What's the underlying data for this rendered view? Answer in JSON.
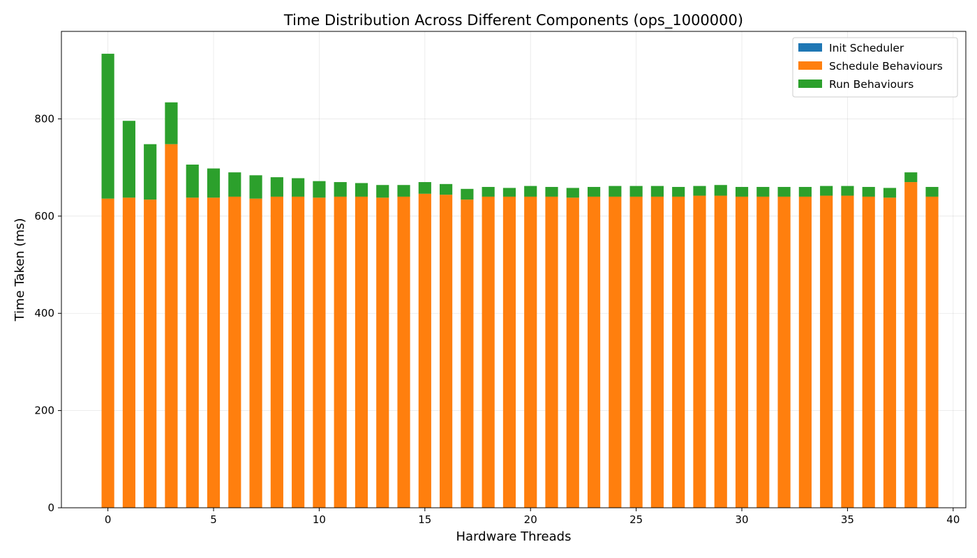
{
  "chart_data": {
    "type": "bar",
    "stacked": true,
    "title": "Time Distribution Across Different Components (ops_1000000)",
    "xlabel": "Hardware Threads",
    "ylabel": "Time Taken (ms)",
    "xlim": [
      -2.2,
      40.6
    ],
    "ylim": [
      0,
      980
    ],
    "xticks": [
      0,
      5,
      10,
      15,
      20,
      25,
      30,
      35,
      40
    ],
    "yticks": [
      0,
      200,
      400,
      600,
      800
    ],
    "grid": true,
    "legend_position": "upper-right",
    "x": [
      0,
      1,
      2,
      3,
      4,
      5,
      6,
      7,
      8,
      9,
      10,
      11,
      12,
      13,
      14,
      15,
      16,
      17,
      18,
      19,
      20,
      21,
      22,
      23,
      24,
      25,
      26,
      27,
      28,
      29,
      30,
      31,
      32,
      33,
      34,
      35,
      36,
      37,
      38,
      39
    ],
    "series": [
      {
        "name": "Init Scheduler",
        "color": "#1f77b4",
        "values": [
          0,
          0,
          0,
          0,
          0,
          0,
          0,
          0,
          0,
          0,
          0,
          0,
          0,
          0,
          0,
          0,
          0,
          0,
          0,
          0,
          0,
          0,
          0,
          0,
          0,
          0,
          0,
          0,
          0,
          0,
          0,
          0,
          0,
          0,
          0,
          0,
          0,
          0,
          0,
          0
        ]
      },
      {
        "name": "Schedule Behaviours",
        "color": "#ff7f0e",
        "values": [
          636,
          638,
          634,
          748,
          638,
          638,
          640,
          636,
          640,
          640,
          638,
          640,
          640,
          638,
          640,
          646,
          644,
          634,
          640,
          640,
          640,
          640,
          638,
          640,
          640,
          640,
          640,
          640,
          642,
          642,
          640,
          640,
          640,
          640,
          642,
          642,
          640,
          638,
          670,
          640
        ]
      },
      {
        "name": "Run Behaviours",
        "color": "#2ca02c",
        "values": [
          298,
          158,
          114,
          86,
          68,
          60,
          50,
          48,
          40,
          38,
          34,
          30,
          28,
          26,
          24,
          24,
          22,
          22,
          20,
          18,
          22,
          20,
          20,
          20,
          22,
          22,
          22,
          20,
          20,
          22,
          20,
          20,
          20,
          20,
          20,
          20,
          20,
          20,
          20,
          20
        ]
      }
    ]
  }
}
